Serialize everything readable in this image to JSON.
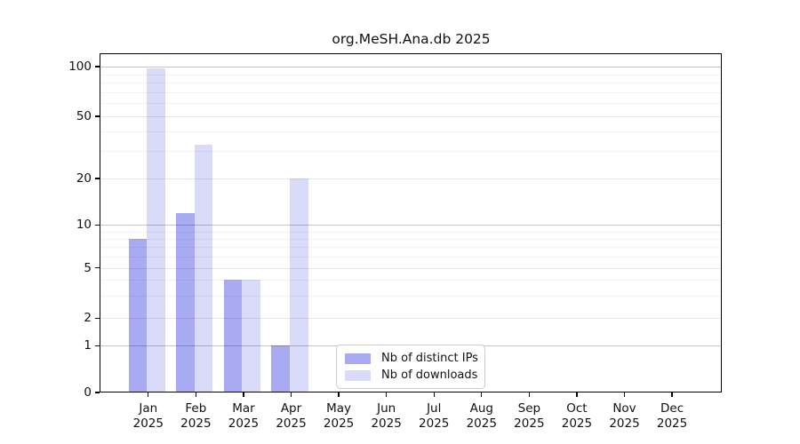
{
  "title": "org.MeSH.Ana.db 2025",
  "chart_data": {
    "type": "bar",
    "title": "org.MeSH.Ana.db 2025",
    "year_label": "2025",
    "categories": [
      "Jan",
      "Feb",
      "Mar",
      "Apr",
      "May",
      "Jun",
      "Jul",
      "Aug",
      "Sep",
      "Oct",
      "Nov",
      "Dec"
    ],
    "series": [
      {
        "name": "Nb of distinct IPs",
        "key": "distinct-ips",
        "color": "#aaaaf2",
        "values": [
          8,
          12,
          4,
          1,
          0,
          0,
          0,
          0,
          0,
          0,
          0,
          0
        ]
      },
      {
        "name": "Nb of downloads",
        "key": "downloads",
        "color": "#dadaf9",
        "values": [
          97,
          33,
          4,
          20,
          0,
          0,
          0,
          0,
          0,
          0,
          0,
          0
        ]
      }
    ],
    "y_ticks": [
      0,
      1,
      2,
      5,
      10,
      20,
      50,
      100
    ],
    "y_minor_gridlines": [
      3,
      4,
      6,
      7,
      8,
      9,
      30,
      40,
      60,
      70,
      80,
      90
    ],
    "ylim": [
      0,
      120
    ],
    "scale": "log-like (0,1,2,5,10,20,50,100)",
    "grid": "horizontal",
    "legend_position": "bottom-center"
  },
  "colors": {
    "background": "#ffffff",
    "axis": "#000000",
    "text": "#111111",
    "grid_major": "rgba(0,0,0,0.23)",
    "grid_mid": "rgba(0,0,0,0.095)",
    "grid_minor": "rgba(0,0,0,0.05)",
    "legend_border": "#cccccc"
  }
}
